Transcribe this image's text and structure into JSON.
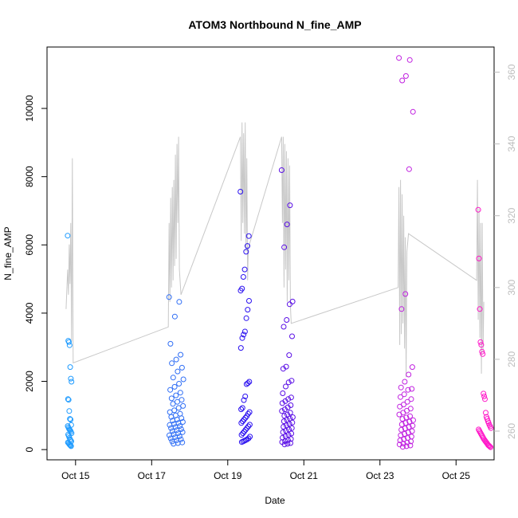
{
  "chart_data": {
    "type": "scatter",
    "title": "ATOM3 Northbound N_fine_AMP",
    "xlabel": "Date",
    "ylabel": "N_fine_AMP",
    "xlim": [
      "2023-10-14T06:00",
      "2023-10-26T00:00"
    ],
    "ylim": [
      -300,
      11800
    ],
    "xticks": [
      {
        "label": "Oct 15",
        "date": "2023-10-15"
      },
      {
        "label": "Oct 17",
        "date": "2023-10-17"
      },
      {
        "label": "Oct 19",
        "date": "2023-10-19"
      },
      {
        "label": "Oct 21",
        "date": "2023-10-21"
      },
      {
        "label": "Oct 23",
        "date": "2023-10-23"
      },
      {
        "label": "Oct 25",
        "date": "2023-10-25"
      }
    ],
    "yticks": [
      0,
      2000,
      4000,
      6000,
      8000,
      10000
    ],
    "yticks_right": [
      260,
      280,
      300,
      320,
      340,
      360
    ],
    "ylim_right": [
      252,
      367
    ],
    "right_axis_color": "#bdbdbd",
    "line_color": "#c8c8c8",
    "point_colors": {
      "start": "#1e9bff",
      "middle": "#3a00e0",
      "end": "#ff16c8"
    },
    "scatter_series": [
      {
        "date": "2023-10-14",
        "hour_start": 19.0,
        "hour_end": 21.5,
        "color": "#1e9bff",
        "points": [
          6270,
          3190,
          3150,
          3060,
          2420,
          2080,
          1990,
          1480,
          1460,
          1130,
          900,
          880,
          720,
          690,
          650,
          610,
          580,
          560,
          520,
          480,
          440,
          400,
          350,
          300,
          270,
          240,
          210,
          190,
          160,
          140,
          120,
          100
        ]
      },
      {
        "date": "2023-10-17",
        "hour_start": 11.0,
        "hour_end": 20.0,
        "color": "#2f6ef5",
        "points": [
          4470,
          4330,
          3900,
          3100,
          2780,
          2640,
          2530,
          2400,
          2290,
          2110,
          2060,
          1930,
          1840,
          1750,
          1670,
          1590,
          1500,
          1460,
          1400,
          1340,
          1280,
          1220,
          1150,
          1100,
          1050,
          1000,
          960,
          920,
          880,
          850,
          810,
          780,
          750,
          720,
          690,
          660,
          630,
          600,
          570,
          540,
          510,
          480,
          450,
          420,
          390,
          360,
          330,
          300,
          270,
          240,
          210,
          190,
          170
        ]
      },
      {
        "date": "2023-10-19",
        "hour_start": 8.0,
        "hour_end": 14.0,
        "color": "#2a10f0",
        "points": [
          7560,
          6260,
          5970,
          5800,
          5280,
          5060,
          4720,
          4660,
          4360,
          4100,
          3850,
          3460,
          3370,
          3270,
          2980,
          1990,
          1950,
          1920,
          1560,
          1450,
          1220,
          1180,
          1100,
          1050,
          980,
          930,
          880,
          830,
          780,
          730,
          680,
          630,
          580,
          530,
          480,
          430,
          380,
          330,
          300,
          280,
          260,
          240,
          220
        ]
      },
      {
        "date": "2023-10-20",
        "hour_start": 10.0,
        "hour_end": 17.0,
        "color": "#5a0ee6",
        "points": [
          8190,
          7160,
          6600,
          5930,
          4340,
          4260,
          3800,
          3600,
          3320,
          2770,
          2430,
          2370,
          2020,
          1970,
          1850,
          1650,
          1530,
          1480,
          1420,
          1360,
          1300,
          1240,
          1180,
          1130,
          1080,
          1030,
          990,
          950,
          910,
          870,
          830,
          790,
          750,
          710,
          670,
          630,
          590,
          550,
          510,
          470,
          430,
          390,
          350,
          310,
          280,
          250,
          220,
          190,
          170,
          150
        ]
      },
      {
        "date": "2023-10-23",
        "hour_start": 12.0,
        "hour_end": 21.0,
        "color": "#c020e0",
        "points": [
          11480,
          11420,
          10950,
          10820,
          9900,
          8220,
          4560,
          4120,
          2420,
          2200,
          1990,
          1820,
          1780,
          1750,
          1620,
          1540,
          1480,
          1400,
          1320,
          1260,
          1200,
          1140,
          1080,
          1030,
          980,
          940,
          900,
          860,
          820,
          780,
          740,
          700,
          660,
          620,
          580,
          540,
          500,
          460,
          420,
          380,
          340,
          300,
          270,
          240,
          210,
          180,
          150,
          120,
          100,
          80
        ]
      },
      {
        "date": "2023-10-25",
        "hour_start": 14.0,
        "hour_end": 22.0,
        "color": "#ff16c8",
        "points": [
          7030,
          5600,
          4120,
          3150,
          3070,
          2870,
          2800,
          1640,
          1560,
          1480,
          1080,
          960,
          900,
          830,
          780,
          720,
          680,
          630,
          590,
          550,
          510,
          470,
          430,
          390,
          350,
          310,
          280,
          250,
          220,
          190,
          160,
          130,
          110,
          90,
          70
        ]
      }
    ],
    "line_series": {
      "name": "",
      "axis": "right",
      "points": [
        [
          "2023-10-14T18:00",
          294
        ],
        [
          "2023-10-14T19:00",
          305
        ],
        [
          "2023-10-14T19:30",
          298
        ],
        [
          "2023-10-14T20:00",
          312
        ],
        [
          "2023-10-14T20:30",
          301
        ],
        [
          "2023-10-14T21:00",
          318
        ],
        [
          "2023-10-14T21:30",
          285
        ],
        [
          "2023-10-14T22:00",
          336
        ],
        [
          "2023-10-14T22:30",
          279
        ],
        [
          "2023-10-17T10:30",
          289
        ],
        [
          "2023-10-17T11:00",
          318
        ],
        [
          "2023-10-17T11:30",
          296
        ],
        [
          "2023-10-17T12:00",
          325
        ],
        [
          "2023-10-17T12:30",
          300
        ],
        [
          "2023-10-17T13:00",
          328
        ],
        [
          "2023-10-17T13:30",
          302
        ],
        [
          "2023-10-17T14:00",
          330
        ],
        [
          "2023-10-17T14:30",
          306
        ],
        [
          "2023-10-17T15:00",
          337
        ],
        [
          "2023-10-17T15:30",
          308
        ],
        [
          "2023-10-17T16:00",
          340
        ],
        [
          "2023-10-17T16:30",
          318
        ],
        [
          "2023-10-17T17:00",
          342
        ],
        [
          "2023-10-17T17:30",
          305
        ],
        [
          "2023-10-17T18:30",
          298
        ],
        [
          "2023-10-19T08:00",
          342
        ],
        [
          "2023-10-19T08:30",
          313
        ],
        [
          "2023-10-19T09:00",
          346
        ],
        [
          "2023-10-19T09:30",
          318
        ],
        [
          "2023-10-19T10:00",
          343
        ],
        [
          "2023-10-19T10:30",
          315
        ],
        [
          "2023-10-19T11:00",
          346
        ],
        [
          "2023-10-19T11:30",
          310
        ],
        [
          "2023-10-19T12:00",
          336
        ],
        [
          "2023-10-19T12:30",
          302
        ],
        [
          "2023-10-19T13:00",
          311
        ],
        [
          "2023-10-20T10:00",
          342
        ],
        [
          "2023-10-20T10:30",
          318
        ],
        [
          "2023-10-20T11:00",
          342
        ],
        [
          "2023-10-20T11:30",
          300
        ],
        [
          "2023-10-20T12:00",
          340
        ],
        [
          "2023-10-20T12:30",
          305
        ],
        [
          "2023-10-20T13:00",
          338
        ],
        [
          "2023-10-20T13:30",
          296
        ],
        [
          "2023-10-20T14:00",
          336
        ],
        [
          "2023-10-20T14:30",
          302
        ],
        [
          "2023-10-20T15:00",
          334
        ],
        [
          "2023-10-20T15:30",
          295
        ],
        [
          "2023-10-20T16:00",
          290
        ],
        [
          "2023-10-23T11:30",
          300
        ],
        [
          "2023-10-23T12:00",
          328
        ],
        [
          "2023-10-23T12:30",
          284
        ],
        [
          "2023-10-23T13:00",
          330
        ],
        [
          "2023-10-23T13:30",
          287
        ],
        [
          "2023-10-23T14:00",
          326
        ],
        [
          "2023-10-23T14:30",
          290
        ],
        [
          "2023-10-23T15:00",
          320
        ],
        [
          "2023-10-23T15:30",
          283
        ],
        [
          "2023-10-23T16:00",
          314
        ],
        [
          "2023-10-23T16:30",
          275
        ],
        [
          "2023-10-23T17:00",
          310
        ],
        [
          "2023-10-23T18:00",
          315
        ],
        [
          "2023-10-25T13:00",
          302
        ],
        [
          "2023-10-25T13:30",
          330
        ],
        [
          "2023-10-25T14:00",
          291
        ],
        [
          "2023-10-25T14:30",
          322
        ],
        [
          "2023-10-25T15:00",
          286
        ],
        [
          "2023-10-25T15:30",
          318
        ],
        [
          "2023-10-25T16:00",
          276
        ],
        [
          "2023-10-25T16:30",
          318
        ],
        [
          "2023-10-25T17:00",
          282
        ],
        [
          "2023-10-25T17:30",
          296
        ]
      ]
    }
  }
}
